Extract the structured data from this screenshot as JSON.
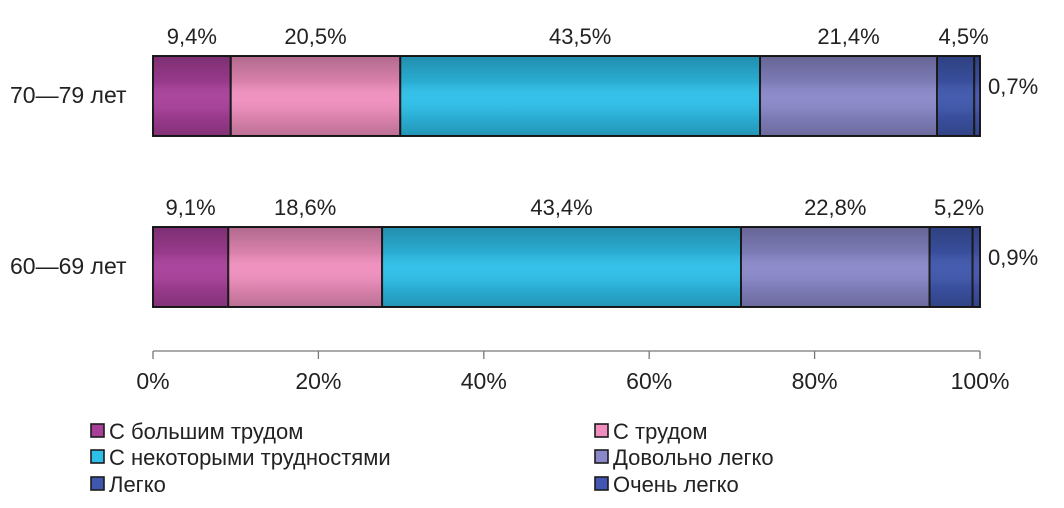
{
  "chart_data": {
    "type": "bar",
    "orientation": "horizontal",
    "stacked": true,
    "percent_stacked": true,
    "categories": [
      "70—79 лет",
      "60—69 лет"
    ],
    "series": [
      {
        "name": "С большим трудом",
        "values": [
          9.4,
          9.1
        ],
        "labels": [
          "9,4%",
          "9,1%"
        ]
      },
      {
        "name": "С трудом",
        "values": [
          20.5,
          18.6
        ],
        "labels": [
          "20,5%",
          "18,6%"
        ]
      },
      {
        "name": "С некоторыми трудностями",
        "values": [
          43.5,
          43.4
        ],
        "labels": [
          "43,5%",
          "43,4%"
        ]
      },
      {
        "name": "Довольно легко",
        "values": [
          21.4,
          22.8
        ],
        "labels": [
          "21,4%",
          "22,8%"
        ]
      },
      {
        "name": "Легко",
        "values": [
          4.5,
          5.2
        ],
        "labels": [
          "4,5%",
          "5,2%"
        ]
      },
      {
        "name": "Очень легко",
        "values": [
          0.7,
          0.9
        ],
        "labels": [
          "0,7%",
          "0,9%"
        ]
      }
    ],
    "x_ticks": [
      "0%",
      "20%",
      "40%",
      "60%",
      "80%",
      "100%"
    ],
    "xlim": [
      0,
      100
    ],
    "grid": false,
    "legend_position": "bottom",
    "colors": {
      "С большим трудом": "#a8409a",
      "С трудом": "#f08fbe",
      "С некоторыми трудностями": "#2ebfe9",
      "Довольно легко": "#8a88c9",
      "Легко": "#3f57ad",
      "Очень легко": "#4256b2"
    }
  }
}
